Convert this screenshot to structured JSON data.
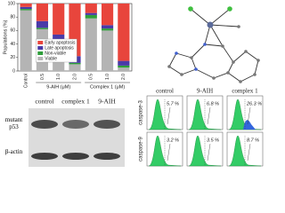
{
  "chart_data": {
    "type": "stacked-bar",
    "ylabel": "Populations (%)",
    "categories": [
      "Control",
      "0.5",
      "1.0",
      "2.0",
      "0.5",
      "1.0",
      "2.0"
    ],
    "group_labels": [
      "9-AIH (μM)",
      "Complex 1 (μM)"
    ],
    "series": [
      {
        "name": "Viable",
        "color": "#b4b4b4",
        "values": [
          90,
          62,
          40,
          10,
          78,
          60,
          5
        ]
      },
      {
        "name": "Non-viable",
        "color": "#2f9e3a",
        "values": [
          2,
          2,
          2,
          2,
          5,
          3,
          3
        ]
      },
      {
        "name": "Late apoptosis",
        "color": "#4a3aa8",
        "values": [
          3,
          10,
          12,
          10,
          3,
          5,
          7
        ]
      },
      {
        "name": "Early apoptosis",
        "color": "#e8453c",
        "values": [
          5,
          26,
          46,
          78,
          14,
          32,
          85
        ]
      }
    ],
    "ylim": [
      0,
      100
    ],
    "yticks": [
      0,
      20,
      40,
      60,
      80,
      100
    ],
    "legend": "lower-left"
  },
  "western_blot": {
    "columns": [
      "control",
      "complex 1",
      "9-AIH"
    ],
    "rows": [
      "mutant p53",
      "β-actin"
    ]
  },
  "flow_cytometry": {
    "columns": [
      "control",
      "9-AIH",
      "complex 1"
    ],
    "rows": [
      "caspase-3",
      "caspase-9"
    ],
    "percent": [
      [
        "5.7 %",
        "6.8 %",
        "26.3 %"
      ],
      [
        "3.2 %",
        "3.5 %",
        "8.7 %"
      ]
    ]
  }
}
